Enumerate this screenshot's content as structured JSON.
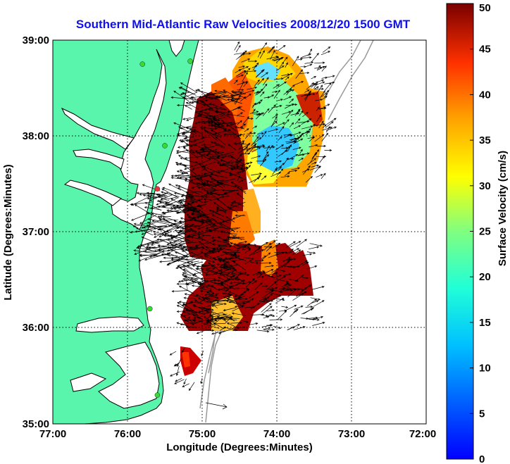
{
  "title": "Southern Mid-Atlantic Raw Velocities 2008/12/20 1500 GMT",
  "xlabel": "Longitude (Degrees:Minutes)",
  "ylabel": "Latitude (Degrees:Minutes)",
  "colorbar": {
    "label": "Surface Velocity (cm/s)",
    "range": [
      0,
      50
    ],
    "ticks": [
      "0",
      "5",
      "10",
      "15",
      "20",
      "25",
      "30",
      "35",
      "40",
      "45",
      "50"
    ],
    "colormap": "jet"
  },
  "map": {
    "x_ticks": [
      "77:00",
      "76:00",
      "75:00",
      "74:00",
      "73:00",
      "72:00"
    ],
    "y_ticks": [
      "39:00",
      "38:00",
      "37:00",
      "36:00",
      "35:00"
    ],
    "lon_range": [
      -77,
      -72
    ],
    "lat_range": [
      35,
      39
    ],
    "grid": "dotted",
    "land_color": "#5af5ac",
    "coastline_color": "#000000",
    "bathymetry_color": "#9a9a9a",
    "stations": [
      {
        "lon": -75.8,
        "lat": 38.75,
        "color": "#33dd33"
      },
      {
        "lon": -75.16,
        "lat": 38.78,
        "color": "#33dd33"
      },
      {
        "lon": -75.5,
        "lat": 37.9,
        "color": "#33dd33"
      },
      {
        "lon": -75.6,
        "lat": 37.45,
        "color": "#ee3333"
      },
      {
        "lon": -75.7,
        "lat": 36.2,
        "color": "#33dd33"
      },
      {
        "lon": -75.6,
        "lat": 35.3,
        "color": "#33dd33"
      }
    ]
  }
}
